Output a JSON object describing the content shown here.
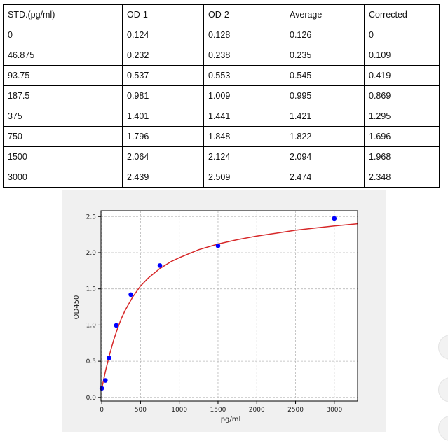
{
  "table": {
    "headers": [
      "STD.(pg/ml)",
      "OD-1",
      "OD-2",
      "Average",
      "Corrected"
    ],
    "rows": [
      [
        "0",
        "0.124",
        "0.128",
        "0.126",
        "0"
      ],
      [
        "46.875",
        "0.232",
        "0.238",
        "0.235",
        "0.109"
      ],
      [
        "93.75",
        "0.537",
        "0.553",
        "0.545",
        "0.419"
      ],
      [
        "187.5",
        "0.981",
        "1.009",
        "0.995",
        "0.869"
      ],
      [
        "375",
        "1.401",
        "1.441",
        "1.421",
        "1.295"
      ],
      [
        "750",
        "1.796",
        "1.848",
        "1.822",
        "1.696"
      ],
      [
        "1500",
        "2.064",
        "2.124",
        "2.094",
        "1.968"
      ],
      [
        "3000",
        "2.439",
        "2.509",
        "2.474",
        "2.348"
      ]
    ]
  },
  "chart_data": {
    "type": "scatter",
    "title": "",
    "xlabel": "pg/ml",
    "ylabel": "OD450",
    "xlim": [
      -10,
      3300
    ],
    "ylim": [
      -0.05,
      2.58
    ],
    "xticks": [
      0,
      500,
      1000,
      1500,
      2000,
      2500,
      3000
    ],
    "yticks": [
      0.0,
      0.5,
      1.0,
      1.5,
      2.0,
      2.5
    ],
    "grid": true,
    "series": [
      {
        "kind": "points",
        "color": "#0000ff",
        "x": [
          0,
          46.875,
          93.75,
          187.5,
          375,
          750,
          1500,
          3000
        ],
        "y": [
          0.126,
          0.235,
          0.545,
          0.995,
          1.421,
          1.822,
          2.094,
          2.474
        ]
      },
      {
        "kind": "fit-curve",
        "color": "#d62728",
        "x": [
          0,
          25,
          50,
          75,
          100,
          150,
          200,
          250,
          300,
          400,
          500,
          600,
          750,
          900,
          1000,
          1250,
          1500,
          1750,
          2000,
          2250,
          2500,
          2750,
          3000,
          3300
        ],
        "y": [
          0.12,
          0.25,
          0.37,
          0.48,
          0.59,
          0.78,
          0.94,
          1.08,
          1.2,
          1.39,
          1.54,
          1.65,
          1.78,
          1.88,
          1.93,
          2.04,
          2.12,
          2.18,
          2.23,
          2.27,
          2.31,
          2.34,
          2.37,
          2.4
        ]
      }
    ]
  },
  "colors": {
    "chart_background": "#f0f0f0",
    "plot_background": "#ffffff",
    "grid": "#b8b8b8",
    "points": "#0000ff",
    "curve": "#d62728"
  }
}
